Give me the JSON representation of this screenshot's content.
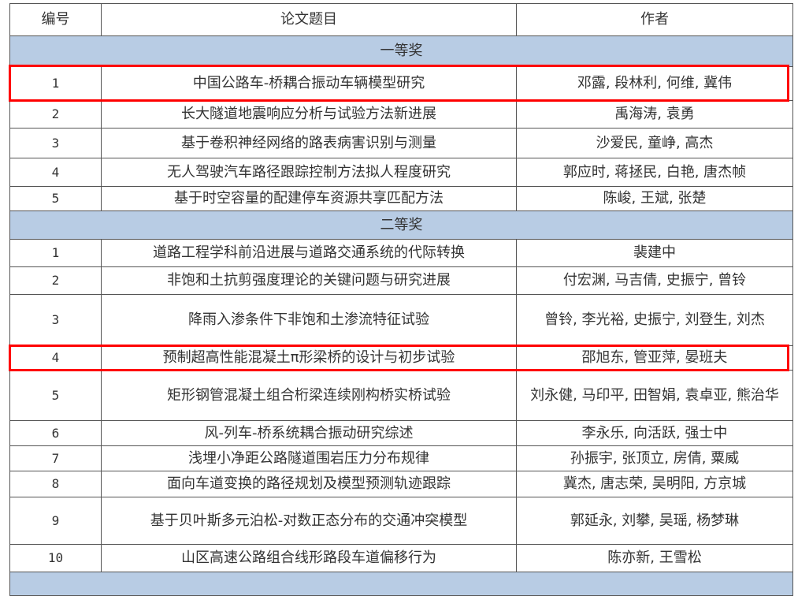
{
  "header": {
    "num": "编号",
    "title": "论文题目",
    "authors": "作者"
  },
  "sections": [
    {
      "label": "一等奖",
      "rows": [
        {
          "num": "1",
          "title": "中国公路车-桥耦合振动车辆模型研究",
          "authors": "邓露, 段林利, 何维, 冀伟",
          "highlighted": true
        },
        {
          "num": "2",
          "title": "长大隧道地震响应分析与试验方法新进展",
          "authors": "禹海涛, 袁勇"
        },
        {
          "num": "3",
          "title": "基于卷积神经网络的路表病害识别与测量",
          "authors": "沙爱民, 童峥, 高杰"
        },
        {
          "num": "4",
          "title": "无人驾驶汽车路径跟踪控制方法拟人程度研究",
          "authors": "郭应时, 蒋拯民, 白艳, 唐杰帧"
        },
        {
          "num": "5",
          "title": "基于时空容量的配建停车资源共享匹配方法",
          "authors": "陈峻, 王斌, 张楚"
        }
      ]
    },
    {
      "label": "二等奖",
      "rows": [
        {
          "num": "1",
          "title": "道路工程学科前沿进展与道路交通系统的代际转换",
          "authors": "裴建中"
        },
        {
          "num": "2",
          "title": "非饱和土抗剪强度理论的关键问题与研究进展",
          "authors": "付宏渊, 马吉倩, 史振宁, 曾铃"
        },
        {
          "num": "3",
          "title": "降雨入渗条件下非饱和土渗流特征试验",
          "authors": "曾铃, 李光裕, 史振宁, 刘登生, 刘杰"
        },
        {
          "num": "4",
          "title": "预制超高性能混凝土π形梁桥的设计与初步试验",
          "authors": "邵旭东, 管亚萍, 晏班夫",
          "highlighted": true
        },
        {
          "num": "5",
          "title": "矩形钢管混凝土组合桁梁连续刚构桥实桥试验",
          "authors": "刘永健, 马印平, 田智娟, 袁卓亚, 熊治华"
        },
        {
          "num": "6",
          "title": "风-列车-桥系统耦合振动研究综述",
          "authors": "李永乐, 向活跃, 强士中"
        },
        {
          "num": "7",
          "title": "浅埋小净距公路隧道围岩压力分布规律",
          "authors": "孙振宇, 张顶立, 房倩, 粟威"
        },
        {
          "num": "8",
          "title": "面向车道变换的路径规划及模型预测轨迹跟踪",
          "authors": "冀杰, 唐志荣, 吴明阳, 方京城"
        },
        {
          "num": "9",
          "title": "基于贝叶斯多元泊松-对数正态分布的交通冲突模型",
          "authors": "郭延永, 刘攀, 吴瑶, 杨梦琳"
        },
        {
          "num": "10",
          "title": "山区高速公路组合线形路段车道偏移行为",
          "authors": "陈亦新, 王雪松"
        }
      ]
    }
  ],
  "colors": {
    "section_bg": "#b8cce4",
    "highlight": "#ff0000",
    "border": "#555555"
  }
}
